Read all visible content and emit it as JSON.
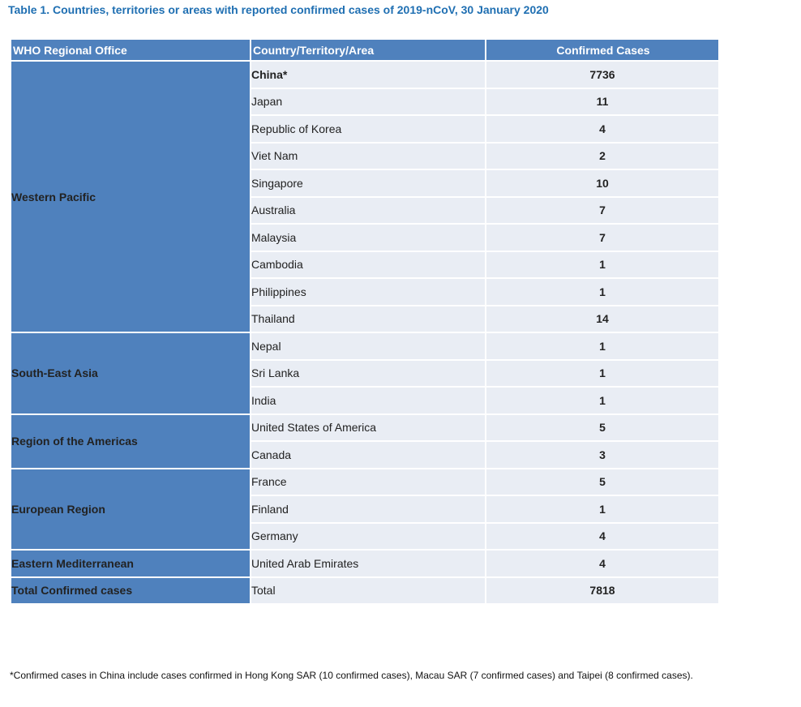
{
  "title": "Table 1. Countries, territories or areas with reported confirmed cases of 2019-nCoV, 30 January 2020",
  "headers": {
    "region": "WHO Regional Office",
    "country": "Country/Territory/Area",
    "cases": "Confirmed Cases"
  },
  "regions": {
    "western_pacific": "Western Pacific",
    "south_east_asia": "South-East Asia",
    "americas": "Region of the Americas",
    "european": "European Region",
    "eastern_mediterranean": "Eastern Mediterranean",
    "total": "Total Confirmed cases"
  },
  "rows": [
    {
      "country": "China*",
      "cases": "7736"
    },
    {
      "country": "Japan",
      "cases": "11"
    },
    {
      "country": "Republic of Korea",
      "cases": "4"
    },
    {
      "country": "Viet Nam",
      "cases": "2"
    },
    {
      "country": "Singapore",
      "cases": "10"
    },
    {
      "country": "Australia",
      "cases": "7"
    },
    {
      "country": "Malaysia",
      "cases": "7"
    },
    {
      "country": "Cambodia",
      "cases": "1"
    },
    {
      "country": "Philippines",
      "cases": "1"
    },
    {
      "country": "Thailand",
      "cases": "14"
    },
    {
      "country": "Nepal",
      "cases": "1"
    },
    {
      "country": "Sri Lanka",
      "cases": "1"
    },
    {
      "country": "India",
      "cases": "1"
    },
    {
      "country": "United States of America",
      "cases": "5"
    },
    {
      "country": "Canada",
      "cases": "3"
    },
    {
      "country": "France",
      "cases": "5"
    },
    {
      "country": "Finland",
      "cases": "1"
    },
    {
      "country": "Germany",
      "cases": "4"
    },
    {
      "country": "United Arab Emirates",
      "cases": "4"
    },
    {
      "country": "Total",
      "cases": "7818"
    }
  ],
  "footnote": "*Confirmed cases in China include cases confirmed in Hong Kong SAR (10 confirmed cases), Macau SAR (7 confirmed cases) and Taipei (8 confirmed cases).",
  "colors": {
    "title": "#1f6fb2",
    "header_bg": "#4f81bd",
    "cell_bg": "#e9edf4"
  }
}
